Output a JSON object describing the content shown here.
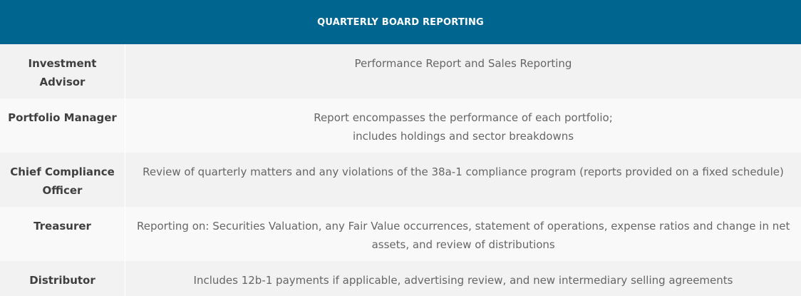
{
  "table": {
    "title": "QUARTERLY BOARD REPORTING",
    "rows": [
      {
        "role_lines": [
          "Investment",
          "Advisor"
        ],
        "desc_lines": [
          "Performance Report and Sales Reporting"
        ]
      },
      {
        "role_lines": [
          "Portfolio Manager"
        ],
        "desc_lines": [
          "Report encompasses the performance of each portfolio;",
          "includes holdings and sector breakdowns"
        ]
      },
      {
        "role_lines": [
          "Chief Compliance",
          "Officer"
        ],
        "desc_lines": [
          "Review of quarterly matters and any violations of the 38a-1 compliance program (reports provided on a fixed schedule)"
        ]
      },
      {
        "role_lines": [
          "Treasurer"
        ],
        "desc_lines": [
          "Reporting on: Securities Valuation, any Fair Value occurrences, statement of operations, expense ratios and change in net",
          "assets, and review of distributions"
        ]
      },
      {
        "role_lines": [
          "Distributor"
        ],
        "desc_lines": [
          "Includes 12b-1 payments if applicable, advertising review, and new intermediary selling agreements"
        ]
      }
    ]
  },
  "colors": {
    "header_bg": "#006690",
    "row_shade": "#f2f2f2",
    "row_light": "#f9f9f9"
  }
}
